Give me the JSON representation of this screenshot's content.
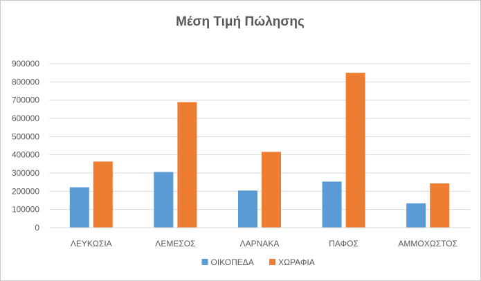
{
  "chart_data": {
    "type": "bar",
    "title": "Μέση Τιμή Πώλησης",
    "xlabel": "",
    "ylabel": "",
    "categories": [
      "ΛΕΥΚΩΣΙΑ",
      "ΛΕΜΕΣΟΣ",
      "ΛΑΡΝΑΚΑ",
      "ΠΑΦΟΣ",
      "ΑΜΜΟΧΩΣΤΟΣ"
    ],
    "series": [
      {
        "name": "ΟΙΚΟΠΕΔΑ",
        "color": "#5B9BD5",
        "values": [
          222000,
          306000,
          204000,
          253000,
          134000
        ]
      },
      {
        "name": "ΧΩΡΑΦΙΑ",
        "color": "#ED7D31",
        "values": [
          363000,
          689000,
          416000,
          850000,
          243000
        ]
      }
    ],
    "ylim": [
      0,
      900000
    ],
    "yticks": [
      "0",
      "100000",
      "200000",
      "300000",
      "400000",
      "500000",
      "600000",
      "700000",
      "800000",
      "900000"
    ],
    "grid": true,
    "legend_position": "bottom"
  }
}
